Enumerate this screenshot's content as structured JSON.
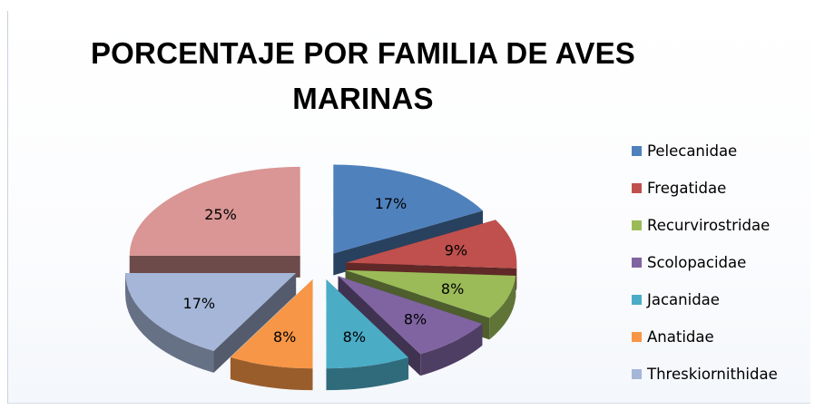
{
  "chart_data": {
    "type": "pie",
    "title_lines": [
      "PORCENTAJE POR FAMILIA DE AVES",
      "MARINAS"
    ],
    "legend_position": "right",
    "exploded": true,
    "three_d": true,
    "slices": [
      {
        "name": "Pelecanidae",
        "value": 17,
        "label": "17%",
        "color": "#4f81bd"
      },
      {
        "name": "Fregatidae",
        "value": 9,
        "label": "9%",
        "color": "#c0504d"
      },
      {
        "name": "Recurvirostridae",
        "value": 8,
        "label": "8%",
        "color": "#9bbb59"
      },
      {
        "name": "Scolopacidae",
        "value": 8,
        "label": "8%",
        "color": "#8064a2"
      },
      {
        "name": "Jacanidae",
        "value": 8,
        "label": "8%",
        "color": "#4bacc6"
      },
      {
        "name": "Anatidae",
        "value": 8,
        "label": "8%",
        "color": "#f79646"
      },
      {
        "name": "Threskiornithidae",
        "value": 17,
        "label": "17%",
        "color": "#a5b6d8"
      },
      {
        "name": "",
        "value": 25,
        "label": "25%",
        "color": "#d99694"
      }
    ]
  }
}
